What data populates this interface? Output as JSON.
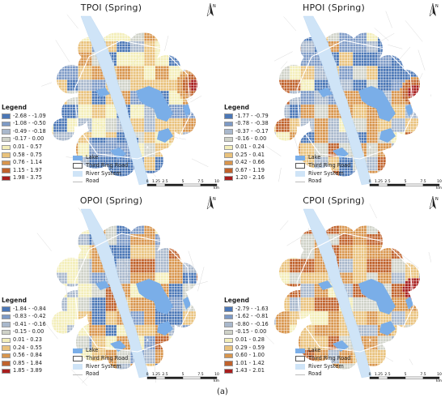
{
  "figure_caption": "(a)",
  "legend_title": "Legend",
  "north_label": "N",
  "scale_labels": [
    "0",
    "1.25",
    "2.5",
    "5",
    "7.5",
    "10"
  ],
  "scale_unit": "km",
  "other_legend": [
    {
      "label": "Lake",
      "color": "#7aaee8"
    },
    {
      "label": "Third Ring Road",
      "color": "#ffffff"
    },
    {
      "label": "River System",
      "color": "#cfe4f7"
    },
    {
      "label": "Road",
      "color": "#bbbbbb"
    }
  ],
  "classes_colors": [
    "#4b77b6",
    "#7d9ac6",
    "#a9b8cc",
    "#cfd2c8",
    "#f3eeb9",
    "#e9c27c",
    "#d8954d",
    "#c0622c",
    "#a81e1e"
  ],
  "panels": [
    {
      "id": "tpoi",
      "title": "TPOI (Spring)",
      "classes": [
        "-2.68 - -1.09",
        "-1.08 - -0.50",
        "-0.49 - -0.18",
        "-0.17 - 0.00",
        "0.01 - 0.57",
        "0.58 - 0.75",
        "0.76 - 1.14",
        "1.15 - 1.97",
        "1.98 - 3.75"
      ]
    },
    {
      "id": "hpoi",
      "title": "HPOI (Spring)",
      "classes": [
        "-1.77 - -0.79",
        "-0.78 - -0.38",
        "-0.37 - -0.17",
        "-0.16 - 0.00",
        "0.01 - 0.24",
        "0.25 - 0.41",
        "0.42 - 0.66",
        "0.67 - 1.19",
        "1.20 - 2.16"
      ]
    },
    {
      "id": "opoi",
      "title": "OPOI (Spring)",
      "classes": [
        "-1.84 - -0.84",
        "-0.83 - -0.42",
        "-0.41 - -0.16",
        "-0.15 - 0.00",
        "0.01 - 0.23",
        "0.24 - 0.55",
        "0.56 - 0.84",
        "0.85 - 1.84",
        "1.85 - 3.89"
      ]
    },
    {
      "id": "cpoi",
      "title": "CPOI (Spring)",
      "classes": [
        "-2.79 - -1.63",
        "-1.62 - -0.81",
        "-0.80 - -0.16",
        "-0.15 - 0.00",
        "0.01 - 0.28",
        "0.29 - 0.59",
        "0.60 - 1.00",
        "1.01 - 1.42",
        "1.43 - 2.01"
      ]
    }
  ]
}
